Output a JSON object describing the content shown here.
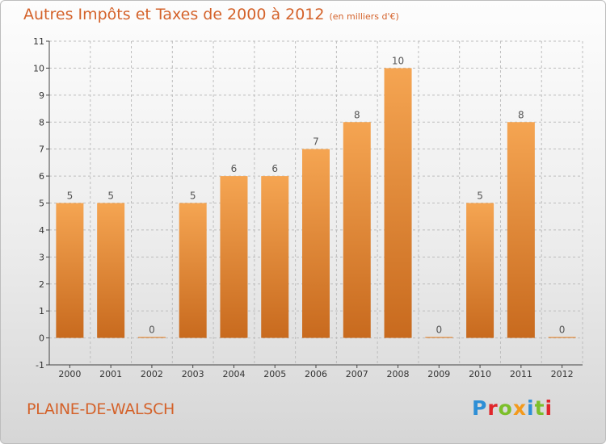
{
  "header": {
    "title": "Autres Impôts et Taxes de 2000 à 2012",
    "unit": "(en milliers d'€)"
  },
  "footer": {
    "commune": "PLAINE-DE-WALSCH",
    "brand": "Proxiti",
    "brand_letters": [
      {
        "char": "P",
        "color": "#2e8fd6"
      },
      {
        "char": "r",
        "color": "#e0262b"
      },
      {
        "char": "o",
        "color": "#7cbf2a"
      },
      {
        "char": "x",
        "color": "#f39a1c"
      },
      {
        "char": "i",
        "color": "#2e8fd6"
      },
      {
        "char": "t",
        "color": "#7cbf2a"
      },
      {
        "char": "i",
        "color": "#e0262b"
      }
    ]
  },
  "colors": {
    "bar_top": "#f5a552",
    "bar_bottom": "#c86a1e",
    "title": "#d4622a",
    "grid": "#bdbdbd"
  },
  "chart_data": {
    "type": "bar",
    "categories": [
      "2000",
      "2001",
      "2002",
      "2003",
      "2004",
      "2005",
      "2006",
      "2007",
      "2008",
      "2009",
      "2010",
      "2011",
      "2012"
    ],
    "values": [
      5,
      5,
      0,
      5,
      6,
      6,
      7,
      8,
      10,
      0,
      5,
      8,
      0
    ],
    "data_labels": [
      "5",
      "5",
      "0",
      "5",
      "6",
      "6",
      "7",
      "8",
      "10",
      "0",
      "5",
      "8",
      "0"
    ],
    "ylim": [
      -1,
      11
    ],
    "yticks": [
      -1,
      0,
      1,
      2,
      3,
      4,
      5,
      6,
      7,
      8,
      9,
      10,
      11
    ],
    "ytick_labels": [
      "-1",
      "0",
      "1",
      "2",
      "3",
      "4",
      "5",
      "6",
      "7",
      "8",
      "9",
      "10",
      "11"
    ],
    "grid": true,
    "title": "Autres Impôts et Taxes de 2000 à 2012",
    "xlabel": "",
    "ylabel": ""
  }
}
